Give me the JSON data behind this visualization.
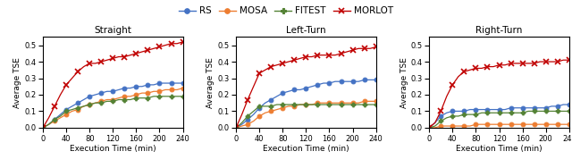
{
  "x": [
    0,
    10,
    20,
    30,
    40,
    50,
    60,
    70,
    80,
    90,
    100,
    110,
    120,
    130,
    140,
    150,
    160,
    170,
    180,
    190,
    200,
    210,
    220,
    230,
    240
  ],
  "straight": {
    "RS": [
      0.0,
      0.02,
      0.05,
      0.08,
      0.11,
      0.13,
      0.15,
      0.17,
      0.19,
      0.2,
      0.21,
      0.22,
      0.22,
      0.23,
      0.24,
      0.24,
      0.25,
      0.25,
      0.26,
      0.26,
      0.27,
      0.27,
      0.27,
      0.27,
      0.27
    ],
    "MOSA": [
      0.0,
      0.02,
      0.04,
      0.06,
      0.08,
      0.1,
      0.11,
      0.13,
      0.14,
      0.15,
      0.16,
      0.17,
      0.17,
      0.18,
      0.19,
      0.19,
      0.2,
      0.21,
      0.21,
      0.22,
      0.22,
      0.23,
      0.23,
      0.23,
      0.24
    ],
    "FITEST": [
      0.0,
      0.02,
      0.05,
      0.07,
      0.1,
      0.11,
      0.12,
      0.13,
      0.14,
      0.15,
      0.15,
      0.16,
      0.16,
      0.17,
      0.17,
      0.17,
      0.18,
      0.18,
      0.18,
      0.19,
      0.19,
      0.19,
      0.19,
      0.19,
      0.19
    ],
    "MORLOT": [
      0.0,
      0.06,
      0.13,
      0.2,
      0.26,
      0.3,
      0.34,
      0.37,
      0.39,
      0.39,
      0.4,
      0.41,
      0.42,
      0.43,
      0.43,
      0.44,
      0.45,
      0.46,
      0.47,
      0.48,
      0.49,
      0.5,
      0.51,
      0.51,
      0.52
    ]
  },
  "leftturn": {
    "RS": [
      0.0,
      0.02,
      0.05,
      0.08,
      0.12,
      0.15,
      0.17,
      0.19,
      0.21,
      0.22,
      0.23,
      0.23,
      0.24,
      0.25,
      0.26,
      0.27,
      0.27,
      0.28,
      0.28,
      0.28,
      0.28,
      0.28,
      0.29,
      0.29,
      0.29
    ],
    "MOSA": [
      0.0,
      0.01,
      0.02,
      0.04,
      0.07,
      0.09,
      0.1,
      0.11,
      0.12,
      0.13,
      0.13,
      0.14,
      0.14,
      0.14,
      0.15,
      0.15,
      0.15,
      0.15,
      0.15,
      0.15,
      0.15,
      0.15,
      0.16,
      0.16,
      0.16
    ],
    "FITEST": [
      0.0,
      0.03,
      0.07,
      0.1,
      0.13,
      0.13,
      0.13,
      0.14,
      0.14,
      0.14,
      0.14,
      0.14,
      0.14,
      0.14,
      0.14,
      0.14,
      0.14,
      0.14,
      0.14,
      0.14,
      0.14,
      0.14,
      0.14,
      0.14,
      0.14
    ],
    "MORLOT": [
      0.0,
      0.08,
      0.17,
      0.25,
      0.33,
      0.35,
      0.37,
      0.38,
      0.39,
      0.4,
      0.41,
      0.42,
      0.43,
      0.43,
      0.44,
      0.44,
      0.44,
      0.44,
      0.45,
      0.46,
      0.47,
      0.48,
      0.48,
      0.48,
      0.49
    ]
  },
  "rightturn": {
    "RS": [
      0.0,
      0.03,
      0.07,
      0.09,
      0.1,
      0.1,
      0.1,
      0.11,
      0.11,
      0.11,
      0.11,
      0.11,
      0.11,
      0.11,
      0.12,
      0.12,
      0.12,
      0.12,
      0.12,
      0.12,
      0.12,
      0.13,
      0.13,
      0.14,
      0.14
    ],
    "MOSA": [
      0.0,
      0.0,
      0.01,
      0.01,
      0.01,
      0.01,
      0.01,
      0.01,
      0.02,
      0.02,
      0.02,
      0.02,
      0.02,
      0.02,
      0.02,
      0.02,
      0.02,
      0.02,
      0.02,
      0.02,
      0.02,
      0.02,
      0.02,
      0.02,
      0.02
    ],
    "FITEST": [
      0.0,
      0.01,
      0.04,
      0.06,
      0.07,
      0.07,
      0.08,
      0.08,
      0.08,
      0.09,
      0.09,
      0.09,
      0.09,
      0.09,
      0.09,
      0.09,
      0.09,
      0.1,
      0.1,
      0.1,
      0.1,
      0.1,
      0.1,
      0.1,
      0.1
    ],
    "MORLOT": [
      0.0,
      0.03,
      0.1,
      0.19,
      0.26,
      0.31,
      0.34,
      0.35,
      0.36,
      0.36,
      0.37,
      0.37,
      0.38,
      0.38,
      0.39,
      0.39,
      0.39,
      0.39,
      0.39,
      0.4,
      0.4,
      0.4,
      0.4,
      0.41,
      0.41
    ]
  },
  "colors": {
    "RS": "#4472C4",
    "MOSA": "#ED7D31",
    "FITEST": "#548235",
    "MORLOT": "#C00000"
  },
  "markers": {
    "RS": "o",
    "MOSA": "o",
    "FITEST": "P",
    "MORLOT": "x"
  },
  "titles": [
    "Straight",
    "Left-Turn",
    "Right-Turn"
  ],
  "xlabel": "Execution Time (min)",
  "ylabel": "Average TSE",
  "ylim": [
    0.0,
    0.55
  ],
  "yticks": [
    0.0,
    0.1,
    0.2,
    0.3,
    0.4,
    0.5
  ],
  "xticks": [
    0,
    40,
    80,
    120,
    160,
    200,
    240
  ],
  "legend_labels": [
    "RS",
    "MOSA",
    "FITEST",
    "MORLOT"
  ]
}
